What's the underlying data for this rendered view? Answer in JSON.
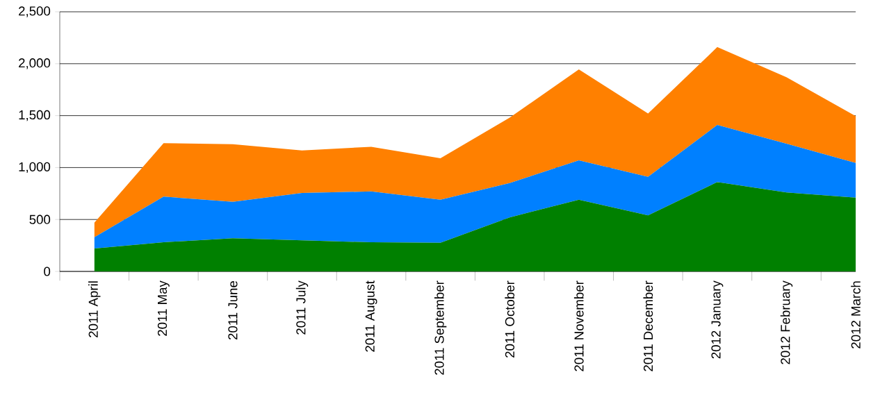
{
  "chart_data": {
    "type": "area",
    "stacked": true,
    "grid": "y",
    "categories": [
      "2011 April",
      "2011 May",
      "2011 June",
      "2011 July",
      "2011 August",
      "2011 September",
      "2011 October",
      "2011 November",
      "2011 December",
      "2012 January",
      "2012 February",
      "2012 March"
    ],
    "series": [
      {
        "color": "#008000",
        "values": [
          220,
          280,
          320,
          300,
          280,
          275,
          520,
          690,
          540,
          860,
          760,
          710
        ]
      },
      {
        "color": "#0080ff",
        "values": [
          110,
          440,
          350,
          455,
          490,
          415,
          330,
          380,
          370,
          550,
          470,
          335
        ]
      },
      {
        "color": "#ff8000",
        "values": [
          140,
          515,
          555,
          410,
          430,
          400,
          630,
          875,
          610,
          750,
          640,
          450
        ]
      }
    ],
    "ylim": [
      0,
      2500
    ],
    "yticks": [
      {
        "value": 0,
        "label": "0"
      },
      {
        "value": 500,
        "label": "500"
      },
      {
        "value": 1000,
        "label": "1,000"
      },
      {
        "value": 1500,
        "label": "1,500"
      },
      {
        "value": 2000,
        "label": "2,000"
      },
      {
        "value": 2500,
        "label": "2,500"
      }
    ]
  }
}
